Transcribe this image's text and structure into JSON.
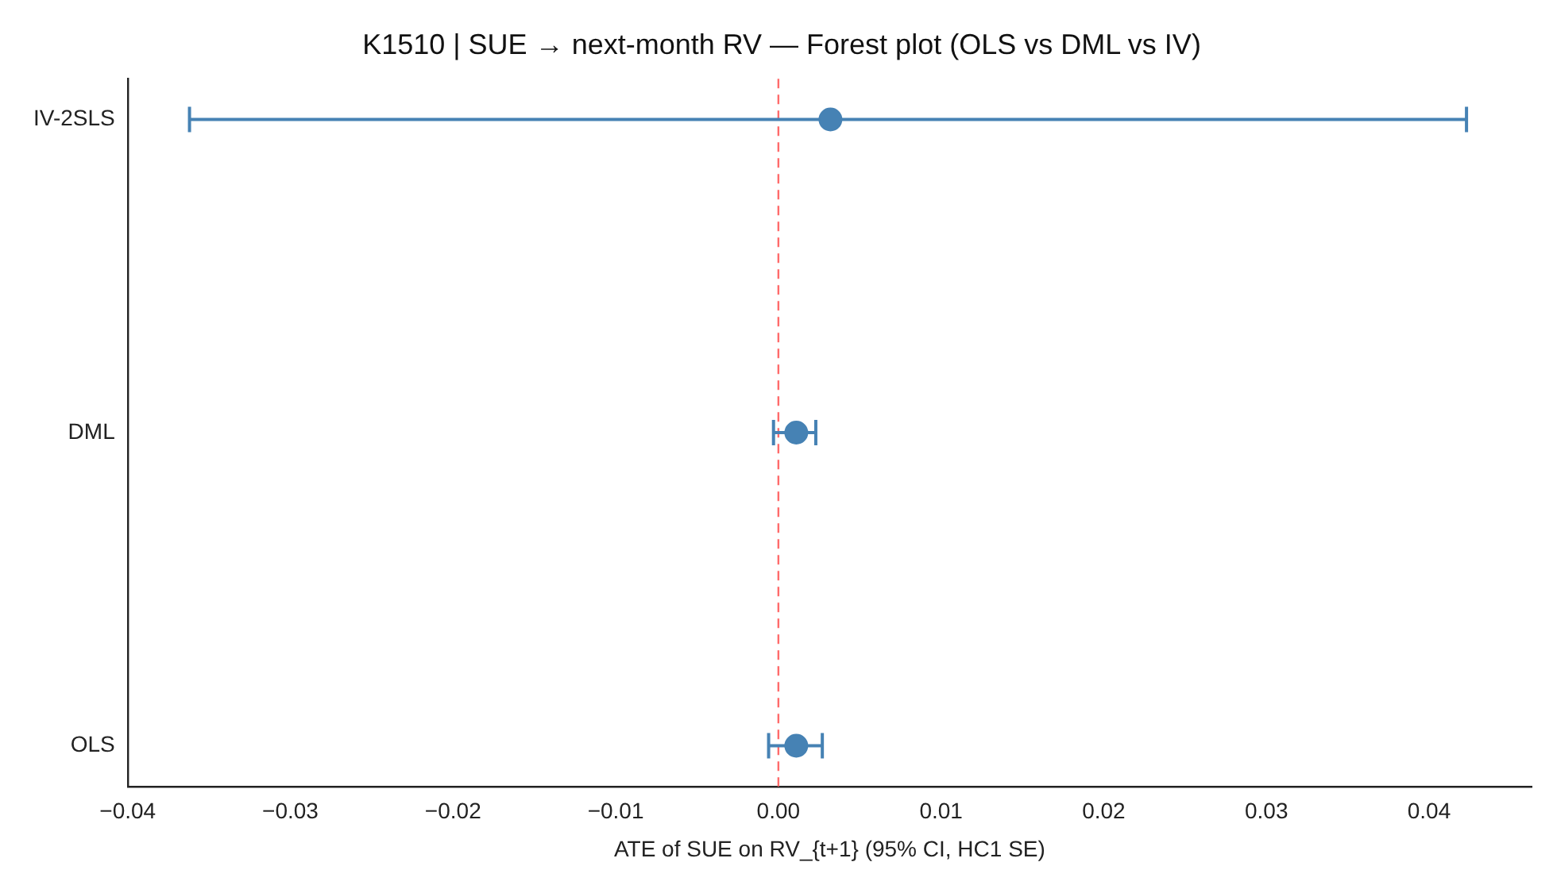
{
  "chart_data": {
    "type": "scatter",
    "orientation": "horizontal",
    "title": "K1510 | SUE → next-month RV — Forest plot (OLS vs DML vs IV)",
    "xlabel": "ATE of SUE on RV_{t+1} (95% CI, HC1 SE)",
    "categories": [
      "IV-2SLS",
      "DML",
      "OLS"
    ],
    "values": [
      0.0032,
      0.0011,
      0.0011
    ],
    "errors": [
      [
        -0.0362,
        0.0423
      ],
      [
        -0.0003,
        0.0023
      ],
      [
        -0.0006,
        0.0027
      ]
    ],
    "color": "#4682b4",
    "marker": "circle",
    "xlim": [
      -0.04,
      0.0463
    ],
    "xticks": [
      {
        "value": -0.04,
        "label": "−0.04"
      },
      {
        "value": -0.03,
        "label": "−0.03"
      },
      {
        "value": -0.02,
        "label": "−0.02"
      },
      {
        "value": -0.01,
        "label": "−0.01"
      },
      {
        "value": 0,
        "label": "0.00"
      },
      {
        "value": 0.01,
        "label": "0.01"
      },
      {
        "value": 0.02,
        "label": "0.02"
      },
      {
        "value": 0.03,
        "label": "0.03"
      },
      {
        "value": 0.04,
        "label": "0.04"
      }
    ],
    "ref_lines": [
      {
        "axis": "x",
        "value": 0,
        "color": "#ff6b6b",
        "line_style": "dashed"
      }
    ],
    "grid": false,
    "legend": false
  }
}
